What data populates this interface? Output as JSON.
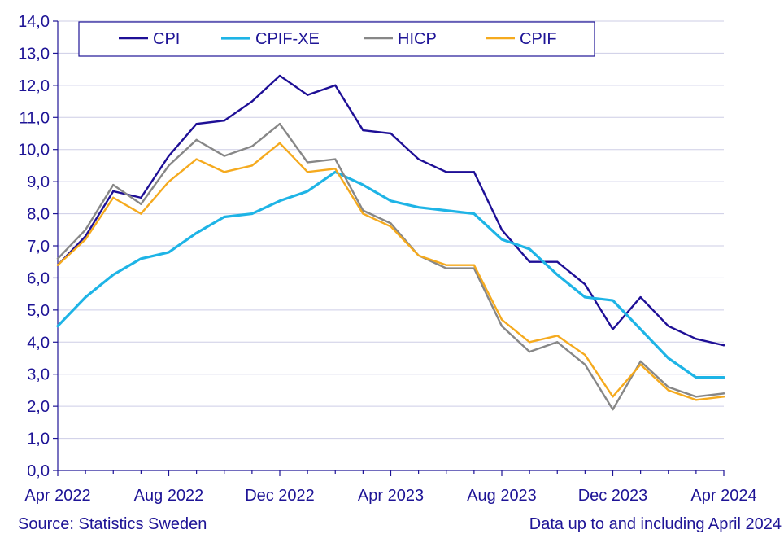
{
  "chart_data": {
    "type": "line",
    "title": "",
    "xlabel": "",
    "ylabel": "",
    "ylim": [
      0,
      14
    ],
    "yticks": [
      "0,0",
      "1,0",
      "2,0",
      "3,0",
      "4,0",
      "5,0",
      "6,0",
      "7,0",
      "8,0",
      "9,0",
      "10,0",
      "11,0",
      "12,0",
      "13,0",
      "14,0"
    ],
    "x": [
      "Apr 2022",
      "May 2022",
      "Jun 2022",
      "Jul 2022",
      "Aug 2022",
      "Sep 2022",
      "Oct 2022",
      "Nov 2022",
      "Dec 2022",
      "Jan 2023",
      "Feb 2023",
      "Mar 2023",
      "Apr 2023",
      "May 2023",
      "Jun 2023",
      "Jul 2023",
      "Aug 2023",
      "Sep 2023",
      "Oct 2023",
      "Nov 2023",
      "Dec 2023",
      "Jan 2024",
      "Feb 2024",
      "Mar 2024",
      "Apr 2024"
    ],
    "xtick_labels": [
      "Apr 2022",
      "Aug 2022",
      "Dec 2022",
      "Apr 2023",
      "Aug 2023",
      "Dec 2023",
      "Apr 2024"
    ],
    "xtick_index": [
      0,
      4,
      8,
      12,
      16,
      20,
      24
    ],
    "grid": "horizontal",
    "legend_position": "top",
    "series": [
      {
        "name": "CPI",
        "color": "#1e0f96",
        "values": [
          6.4,
          7.3,
          8.7,
          8.5,
          9.8,
          10.8,
          10.9,
          11.5,
          12.3,
          11.7,
          12.0,
          10.6,
          10.5,
          9.7,
          9.3,
          9.3,
          7.5,
          6.5,
          6.5,
          5.8,
          4.4,
          5.4,
          4.5,
          4.1,
          3.9
        ]
      },
      {
        "name": "CPIF-XE",
        "color": "#1eb4e6",
        "values": [
          4.5,
          5.4,
          6.1,
          6.6,
          6.8,
          7.4,
          7.9,
          8.0,
          8.4,
          8.7,
          9.3,
          8.9,
          8.4,
          8.2,
          8.1,
          8.0,
          7.2,
          6.9,
          6.1,
          5.4,
          5.3,
          4.4,
          3.5,
          2.9,
          2.9
        ]
      },
      {
        "name": "HICP",
        "color": "#878787",
        "values": [
          6.6,
          7.5,
          8.9,
          8.3,
          9.5,
          10.3,
          9.8,
          10.1,
          10.8,
          9.6,
          9.7,
          8.1,
          7.7,
          6.7,
          6.3,
          6.3,
          4.5,
          3.7,
          4.0,
          3.3,
          1.9,
          3.4,
          2.6,
          2.3,
          2.4
        ]
      },
      {
        "name": "CPIF",
        "color": "#f5aa1e",
        "values": [
          6.4,
          7.2,
          8.5,
          8.0,
          9.0,
          9.7,
          9.3,
          9.5,
          10.2,
          9.3,
          9.4,
          8.0,
          7.6,
          6.7,
          6.4,
          6.4,
          4.7,
          4.0,
          4.2,
          3.6,
          2.3,
          3.3,
          2.5,
          2.2,
          2.3
        ]
      }
    ]
  },
  "footer": {
    "source": "Source: Statistics Sweden",
    "note": "Data up to and including April 2024"
  }
}
